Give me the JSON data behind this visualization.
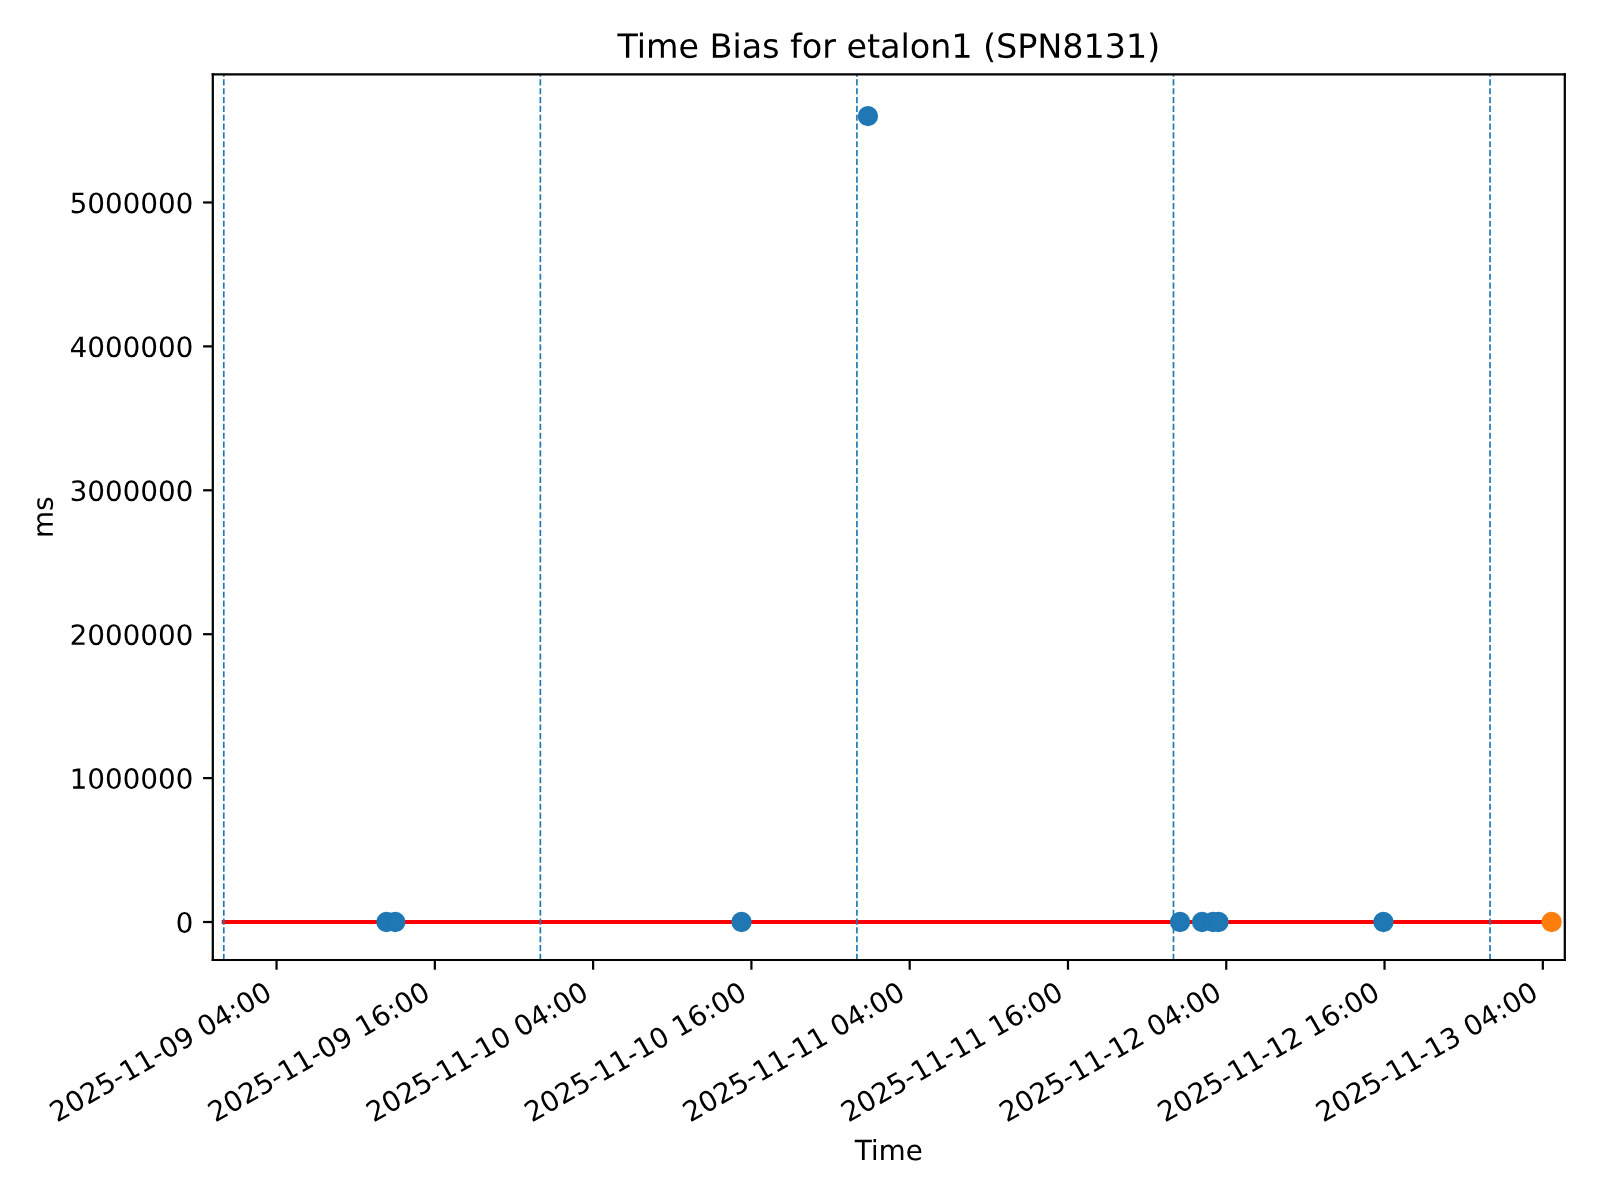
{
  "chart_data": {
    "type": "scatter",
    "title": "Time Bias for etalon1 (SPN8131)",
    "xlabel": "Time",
    "ylabel": "ms",
    "series": [
      {
        "type": "line",
        "color": "#ff0000",
        "x": [
          "2025-11-09T00:00",
          "2025-11-13T04:40"
        ],
        "values": [
          0,
          0
        ],
        "marker": "none"
      },
      {
        "color": "#1f77b4",
        "marker": "circle",
        "x": [
          "2025-11-09T12:20",
          "2025-11-09T13:00",
          "2025-11-10T15:15",
          "2025-11-11T00:50",
          "2025-11-12T00:30",
          "2025-11-12T02:10",
          "2025-11-12T03:00",
          "2025-11-12T03:25",
          "2025-11-12T15:55"
        ],
        "values": [
          0,
          0,
          0,
          5600000,
          0,
          0,
          0,
          0,
          0
        ]
      },
      {
        "color": "#ff7f0e",
        "marker": "circle",
        "x": [
          "2025-11-13T04:40"
        ],
        "values": [
          0
        ]
      }
    ],
    "ref_lines": [
      {
        "axis": "x",
        "value": "2025-11-09T00:00",
        "color": "#1f77b4",
        "line_style": "dashed"
      },
      {
        "axis": "x",
        "value": "2025-11-10T00:00",
        "color": "#1f77b4",
        "line_style": "dashed"
      },
      {
        "axis": "x",
        "value": "2025-11-11T00:00",
        "color": "#1f77b4",
        "line_style": "dashed"
      },
      {
        "axis": "x",
        "value": "2025-11-12T00:00",
        "color": "#1f77b4",
        "line_style": "dashed"
      },
      {
        "axis": "x",
        "value": "2025-11-13T00:00",
        "color": "#1f77b4",
        "line_style": "dashed"
      }
    ],
    "xlim": [
      "2025-11-08T23:10",
      "2025-11-13T05:40"
    ],
    "xticks": [
      {
        "value": "2025-11-09T04:00",
        "label": "2025-11-09 04:00"
      },
      {
        "value": "2025-11-09T16:00",
        "label": "2025-11-09 16:00"
      },
      {
        "value": "2025-11-10T04:00",
        "label": "2025-11-10 04:00"
      },
      {
        "value": "2025-11-10T16:00",
        "label": "2025-11-10 16:00"
      },
      {
        "value": "2025-11-11T04:00",
        "label": "2025-11-11 04:00"
      },
      {
        "value": "2025-11-11T16:00",
        "label": "2025-11-11 16:00"
      },
      {
        "value": "2025-11-12T04:00",
        "label": "2025-11-12 04:00"
      },
      {
        "value": "2025-11-12T16:00",
        "label": "2025-11-12 16:00"
      },
      {
        "value": "2025-11-13T04:00",
        "label": "2025-11-13 04:00"
      }
    ],
    "ylim": [
      -264000,
      5890000
    ],
    "yticks": [
      0,
      1000000,
      2000000,
      3000000,
      4000000,
      5000000
    ],
    "grid": false
  }
}
